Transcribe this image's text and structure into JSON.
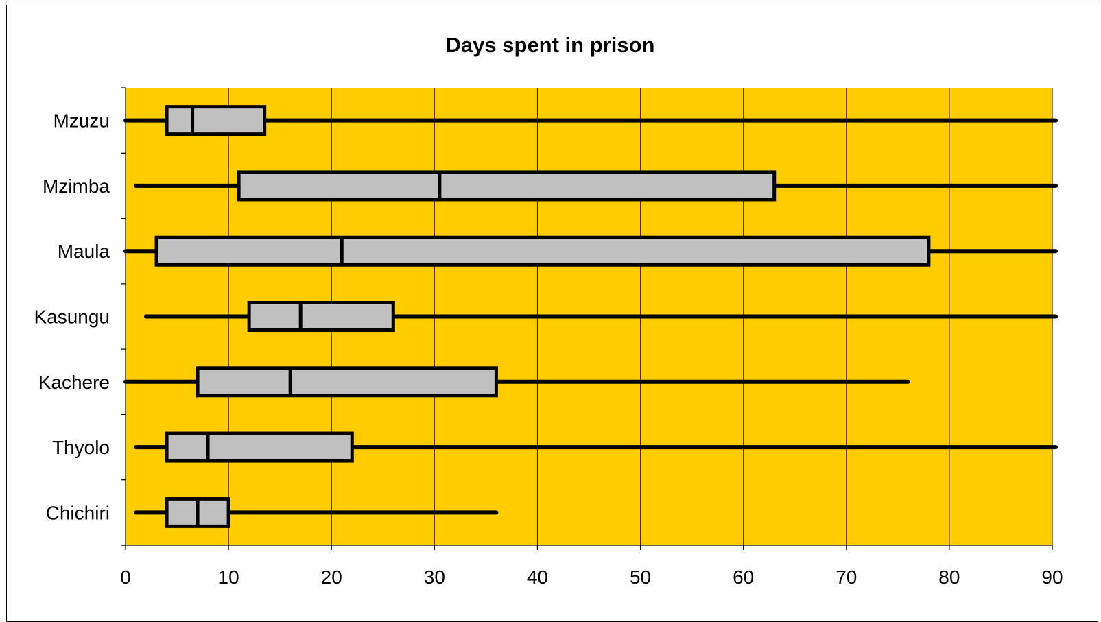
{
  "chart_data": {
    "type": "boxplot",
    "orientation": "horizontal",
    "title": "Days spent in prison",
    "xlabel": "",
    "ylabel": "",
    "xlim": [
      0,
      90
    ],
    "x_ticks": [
      0,
      10,
      20,
      30,
      40,
      50,
      60,
      70,
      80,
      90
    ],
    "grid": "vertical gridlines",
    "legend": "none",
    "colors": {
      "plot_background": "#FFCC00",
      "box_fill": "#C0C0C0",
      "lines": "#000000"
    },
    "categories": [
      "Mzuzu",
      "Mzimba",
      "Maula",
      "Kasungu",
      "Kachere",
      "Thyolo",
      "Chichiri"
    ],
    "boxes": [
      {
        "label": "Mzuzu",
        "min": 0,
        "q1": 4,
        "median": 6.5,
        "q3": 13.5,
        "max": 90,
        "whisker_extends_beyond_axis": true
      },
      {
        "label": "Mzimba",
        "min": 1,
        "q1": 11,
        "median": 30.5,
        "q3": 63,
        "max": 90,
        "whisker_extends_beyond_axis": true
      },
      {
        "label": "Maula",
        "min": 0,
        "q1": 3,
        "median": 21,
        "q3": 78,
        "max": 90,
        "whisker_extends_beyond_axis": true
      },
      {
        "label": "Kasungu",
        "min": 2,
        "q1": 12,
        "median": 17,
        "q3": 26,
        "max": 90,
        "whisker_extends_beyond_axis": true
      },
      {
        "label": "Kachere",
        "min": 0,
        "q1": 7,
        "median": 16,
        "q3": 36,
        "max": 76,
        "whisker_extends_beyond_axis": false
      },
      {
        "label": "Thyolo",
        "min": 1,
        "q1": 4,
        "median": 8,
        "q3": 22,
        "max": 90,
        "whisker_extends_beyond_axis": true
      },
      {
        "label": "Chichiri",
        "min": 1,
        "q1": 4,
        "median": 7,
        "q3": 10,
        "max": 36,
        "whisker_extends_beyond_axis": false
      }
    ]
  }
}
